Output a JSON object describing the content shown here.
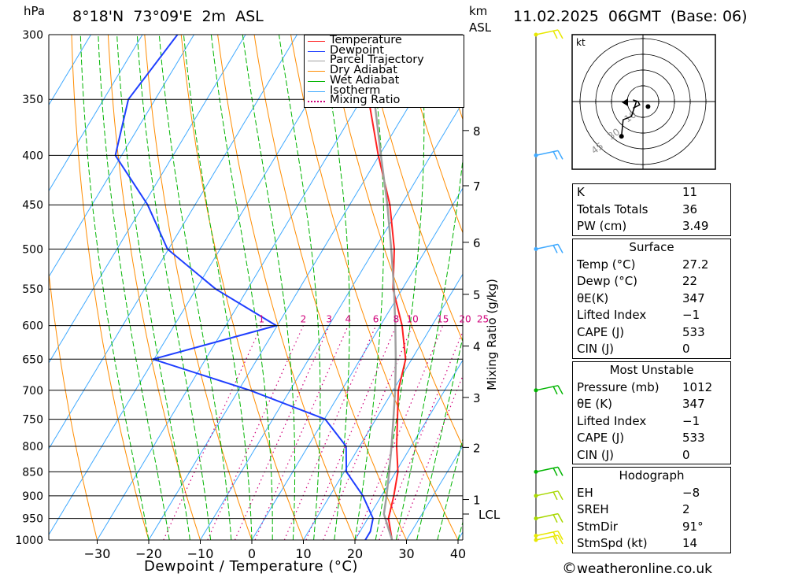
{
  "header": {
    "pressure_unit": "hPa",
    "location": "8°18'N  73°09'E  2m  ASL",
    "km_unit": "km",
    "km_sub": "ASL",
    "timestamp": "11.02.2025  06GMT  (Base: 06)"
  },
  "chart_data": {
    "type": "skew-T log-P diagram",
    "xlabel": "Dewpoint / Temperature (°C)",
    "x_ticks": [
      -30,
      -20,
      -10,
      0,
      10,
      20,
      30,
      40
    ],
    "pressure_levels": [
      300,
      350,
      400,
      450,
      500,
      550,
      600,
      650,
      700,
      750,
      800,
      850,
      900,
      950,
      1000
    ],
    "ylim": [
      1000,
      300
    ],
    "xlim_bottom": [
      -40,
      40
    ],
    "skew": "isotherms tilted to the right with height",
    "mixing_ratio_label": "Mixing Ratio (g/kg)",
    "mixing_ratio_ticks": [
      "1",
      "2",
      "3",
      "4",
      "6",
      "8",
      "10",
      "15",
      "20",
      "25"
    ],
    "km_ticks": [
      {
        "km": "1",
        "p": 908
      },
      {
        "km": "2",
        "p": 802
      },
      {
        "km": "3",
        "p": 712
      },
      {
        "km": "4",
        "p": 630
      },
      {
        "km": "5",
        "p": 557
      },
      {
        "km": "6",
        "p": 492
      },
      {
        "km": "7",
        "p": 430
      },
      {
        "km": "8",
        "p": 377
      }
    ],
    "lcl": {
      "label": "LCL",
      "p": 940
    },
    "legend": {
      "position": "top-center",
      "entries": [
        {
          "name": "Temperature",
          "color": "#ff2020",
          "style": "solid"
        },
        {
          "name": "Dewpoint",
          "color": "#1f3fff",
          "style": "solid"
        },
        {
          "name": "Parcel Trajectory",
          "color": "#a0a0a0",
          "style": "solid"
        },
        {
          "name": "Dry Adiabat",
          "color": "#ff8c00",
          "style": "solid"
        },
        {
          "name": "Wet Adiabat",
          "color": "#00b400",
          "style": "solid"
        },
        {
          "name": "Isotherm",
          "color": "#3fa9ff",
          "style": "solid"
        },
        {
          "name": "Mixing Ratio",
          "color": "#d0007a",
          "style": "dotted"
        }
      ]
    },
    "series": [
      {
        "name": "Temperature",
        "color": "#ff2020",
        "points": [
          [
            1000,
            27.2
          ],
          [
            950,
            24.0
          ],
          [
            900,
            22.4
          ],
          [
            850,
            20.4
          ],
          [
            800,
            17.2
          ],
          [
            750,
            14.2
          ],
          [
            700,
            11.0
          ],
          [
            650,
            8.8
          ],
          [
            600,
            4.2
          ],
          [
            550,
            -1.8
          ],
          [
            500,
            -6.2
          ],
          [
            450,
            -12.2
          ],
          [
            400,
            -20.2
          ],
          [
            350,
            -28.6
          ],
          [
            300,
            -39.2
          ]
        ]
      },
      {
        "name": "Dewpoint",
        "color": "#1f3fff",
        "points": [
          [
            1000,
            22.0
          ],
          [
            980,
            22.0
          ],
          [
            950,
            21.0
          ],
          [
            900,
            16.4
          ],
          [
            850,
            10.4
          ],
          [
            800,
            7.4
          ],
          [
            750,
            0.2
          ],
          [
            700,
            -17.8
          ],
          [
            650,
            -40.2
          ],
          [
            600,
            -20.2
          ],
          [
            550,
            -36.2
          ],
          [
            500,
            -50.2
          ],
          [
            450,
            -59.2
          ],
          [
            400,
            -71.2
          ],
          [
            350,
            -75.2
          ],
          [
            300,
            -73.2
          ]
        ]
      },
      {
        "name": "Parcel Trajectory",
        "color": "#a0a0a0",
        "points": [
          [
            1000,
            27.2
          ],
          [
            940,
            22.6
          ],
          [
            900,
            21.0
          ],
          [
            850,
            18.7
          ],
          [
            800,
            16.2
          ],
          [
            750,
            13.4
          ],
          [
            700,
            10.4
          ],
          [
            650,
            6.9
          ],
          [
            600,
            2.9
          ],
          [
            550,
            -1.6
          ],
          [
            500,
            -6.8
          ],
          [
            450,
            -12.7
          ],
          [
            400,
            -19.7
          ],
          [
            350,
            -27.5
          ],
          [
            330,
            -31.0
          ]
        ]
      }
    ],
    "wind_barbs": [
      {
        "p": 1000,
        "color": "#e8e800"
      },
      {
        "p": 990,
        "color": "#e8e800"
      },
      {
        "p": 950,
        "color": "#a8d800"
      },
      {
        "p": 900,
        "color": "#a8d800"
      },
      {
        "p": 850,
        "color": "#00b400"
      },
      {
        "p": 700,
        "color": "#00b400"
      },
      {
        "p": 500,
        "color": "#3fa9ff"
      },
      {
        "p": 400,
        "color": "#3fa9ff"
      },
      {
        "p": 300,
        "color": "#e8e800"
      }
    ],
    "hodograph": {
      "unit": "kt",
      "ring_labels": [
        "10",
        "30",
        "45"
      ],
      "trace_kt": [
        [
          -6,
          -4
        ],
        [
          -2,
          -2
        ],
        [
          -3,
          0
        ],
        [
          -6,
          1
        ],
        [
          -4,
          0
        ],
        [
          -7,
          -9
        ],
        [
          -12,
          -11
        ],
        [
          -13,
          -21
        ]
      ]
    }
  },
  "table": {
    "indices": [
      {
        "label": "K",
        "value": "11"
      },
      {
        "label": "Totals Totals",
        "value": "36"
      },
      {
        "label": "PW (cm)",
        "value": "3.49"
      }
    ],
    "surface": {
      "title": "Surface",
      "rows": [
        {
          "label": "Temp (°C)",
          "value": "27.2"
        },
        {
          "label": "Dewp (°C)",
          "value": "22"
        },
        {
          "label": "θE(K)",
          "value": "347"
        },
        {
          "label": "Lifted Index",
          "value": "-1"
        },
        {
          "label": "CAPE (J)",
          "value": "533"
        },
        {
          "label": "CIN (J)",
          "value": "0"
        }
      ]
    },
    "most_unstable": {
      "title": "Most Unstable",
      "rows": [
        {
          "label": "Pressure (mb)",
          "value": "1012"
        },
        {
          "label": "θE (K)",
          "value": "347"
        },
        {
          "label": "Lifted Index",
          "value": "-1"
        },
        {
          "label": "CAPE (J)",
          "value": "533"
        },
        {
          "label": "CIN (J)",
          "value": "0"
        }
      ]
    },
    "hodograph": {
      "title": "Hodograph",
      "rows": [
        {
          "label": "EH",
          "value": "-8"
        },
        {
          "label": "SREH",
          "value": "2"
        },
        {
          "label": "StmDir",
          "value": "91°"
        },
        {
          "label": "StmSpd (kt)",
          "value": "14"
        }
      ]
    }
  },
  "footer": {
    "copyright": "©",
    "site": "weatheronline.co.uk"
  }
}
